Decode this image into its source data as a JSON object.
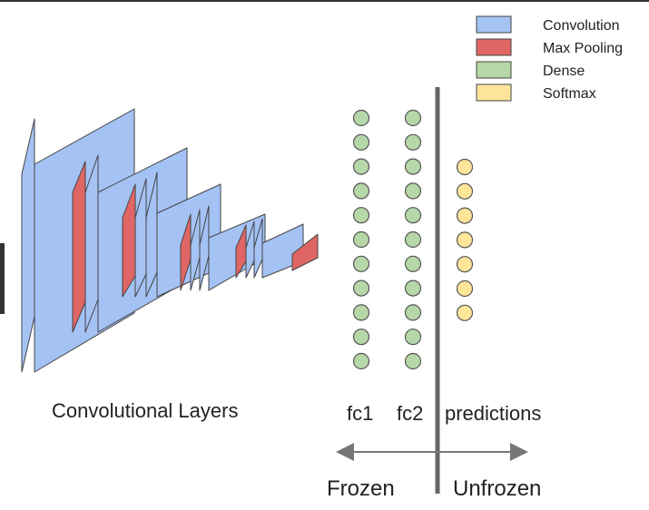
{
  "legend": {
    "items": [
      {
        "label": "Convolution",
        "color": "#a4c2f4"
      },
      {
        "label": "Max Pooling",
        "color": "#e06666"
      },
      {
        "label": "Dense",
        "color": "#b6d7a8"
      },
      {
        "label": "Softmax",
        "color": "#ffe599"
      }
    ]
  },
  "layers": {
    "conv_caption": "Convolutional Layers",
    "fc1": {
      "label": "fc1",
      "neurons": 11
    },
    "fc2": {
      "label": "fc2",
      "neurons": 11
    },
    "predictions": {
      "label": "predictions",
      "neurons": 7
    }
  },
  "split": {
    "frozen_label": "Frozen",
    "unfrozen_label": "Unfrozen"
  },
  "colors": {
    "convolution": "#a4c2f4",
    "max_pooling": "#e06666",
    "dense": "#b6d7a8",
    "softmax": "#ffe599",
    "outline": "#444444",
    "neuron_stroke": "#555555",
    "divider": "#666666",
    "arrow": "#777777"
  }
}
